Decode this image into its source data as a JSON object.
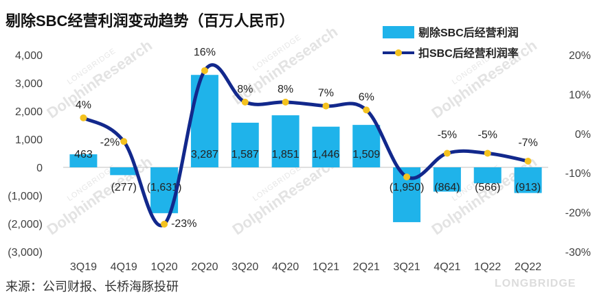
{
  "chart_data": {
    "type": "bar",
    "title": "剔除SBC经营利润变动趋势（百万人民币）",
    "categories": [
      "3Q19",
      "4Q19",
      "1Q20",
      "2Q20",
      "3Q20",
      "4Q20",
      "1Q21",
      "2Q21",
      "3Q21",
      "4Q21",
      "1Q22",
      "2Q22"
    ],
    "series": [
      {
        "name": "剔除SBC后经营利润",
        "kind": "bar",
        "axis": "left",
        "color": "#1fb3ea",
        "values": [
          463,
          -277,
          -1631,
          3287,
          1587,
          1851,
          1446,
          1509,
          -1950,
          -864,
          -566,
          -913
        ],
        "labels": [
          "463",
          "(277)",
          "(1,631)",
          "3,287",
          "1,587",
          "1,851",
          "1,446",
          "1,509",
          "(1,950)",
          "(864)",
          "(566)",
          "(913)"
        ]
      },
      {
        "name": "扣SBC后经营利润率",
        "kind": "line",
        "axis": "right",
        "color": "#12288c",
        "marker_color": "#f4c21f",
        "values": [
          4,
          -2,
          -23,
          16,
          8,
          8,
          7,
          6,
          -11,
          -5,
          -5,
          -7
        ],
        "labels": [
          "4%",
          "-2%",
          "-23%",
          "16%",
          "8%",
          "8%",
          "7%",
          "6%",
          "",
          "-5%",
          "-5%",
          "-7%"
        ]
      }
    ],
    "left_axis": {
      "ylim": [
        -3000,
        4000
      ],
      "ticks": [
        -3000,
        -2000,
        -1000,
        0,
        1000,
        2000,
        3000,
        4000
      ],
      "tick_labels": [
        "(3,000)",
        "(2,000)",
        "(1,000)",
        "0",
        "1,000",
        "2,000",
        "3,000",
        "4,000"
      ]
    },
    "right_axis": {
      "ylim": [
        -30,
        20
      ],
      "ticks": [
        -30,
        -20,
        -10,
        0,
        10,
        20
      ],
      "tick_labels": [
        "-30%",
        "-20%",
        "-10%",
        "0%",
        "10%",
        "20%"
      ]
    },
    "legend_position": "top-right",
    "source": "来源：公司财报、长桥海豚投研"
  },
  "watermark": {
    "main": "DolphinResearch",
    "small": "LONGBRIDGE",
    "brand": "LONGBRIDGE"
  }
}
